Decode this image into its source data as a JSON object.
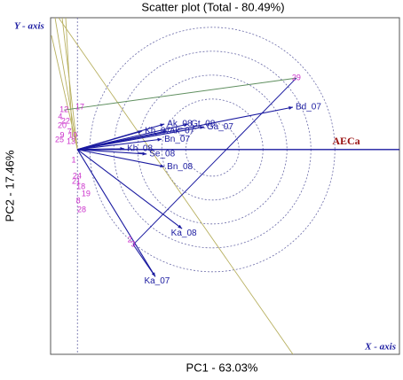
{
  "chart_data": {
    "type": "biplot",
    "title": "Scatter plot (Total - 80.49%)",
    "x_label": "PC1 - 63.03%",
    "y_label": "PC2 - 17.46%",
    "x_axis_marker": "X - axis",
    "y_axis_marker": "Y - axis",
    "average_axis_label": "AECa",
    "xlim": [
      -1,
      12
    ],
    "ylim": [
      -7.3,
      4.7
    ],
    "genotypes": {
      "color": "#cc33cc",
      "labels": [
        "29",
        "17",
        "12",
        "4",
        "22",
        "20",
        "7",
        "9",
        "10",
        "25",
        "13",
        "1",
        "24",
        "21",
        "18",
        "19",
        "8",
        "28",
        "2",
        "3"
      ],
      "x": [
        8.16,
        0.09,
        -0.5,
        -0.64,
        -0.44,
        -0.57,
        -0.3,
        -0.57,
        -0.17,
        -0.67,
        -0.24,
        -0.14,
        -0.01,
        -0.04,
        0.13,
        0.32,
        0.03,
        0.16,
        1.95,
        2.08
      ],
      "y": [
        2.55,
        1.51,
        1.41,
        1.16,
        1.0,
        0.85,
        0.63,
        0.5,
        0.5,
        0.34,
        0.28,
        -0.39,
        -0.95,
        -1.14,
        -1.33,
        -1.59,
        -1.84,
        -2.16,
        -3.23,
        -3.39
      ]
    },
    "environments": {
      "color": "#1a1aa0",
      "labels": [
        "Bd_07",
        "Ak_08",
        "Gt_08",
        "Kh_07",
        "Ak_07",
        "Ga_07",
        "Bn_07",
        "Kh_08",
        "Se_08",
        "Bn_08",
        "Ka_08",
        "Ka_07"
      ],
      "x": [
        8.03,
        3.24,
        4.13,
        2.41,
        3.33,
        4.72,
        3.14,
        1.75,
        2.58,
        3.24,
        3.9,
        2.9
      ],
      "y": [
        1.51,
        0.91,
        0.91,
        0.66,
        0.66,
        0.81,
        0.37,
        0.03,
        -0.16,
        -0.61,
        -2.82,
        -4.53
      ]
    }
  }
}
